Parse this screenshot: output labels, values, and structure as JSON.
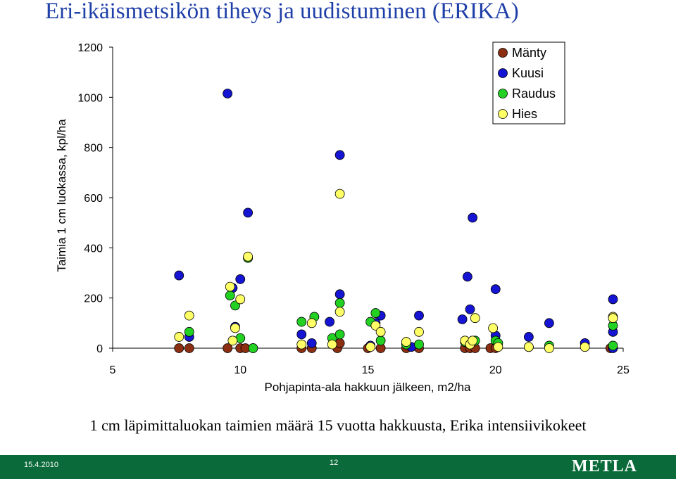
{
  "header": {
    "title": "Eri-ikäismetsikön tiheys ja uudistuminen (ERIKA)"
  },
  "caption": "1 cm läpimittaluokan taimien määrä 15 vuotta hakkuusta, Erika intensiivikokeet",
  "footer": {
    "date": "15.4.2010",
    "page": "12",
    "logo": "METLA"
  },
  "chart_data": {
    "type": "scatter",
    "title": "",
    "xlabel": "Pohjapinta-ala hakkuun jälkeen, m2/ha",
    "ylabel": "Taimia 1 cm luokassa, kpl/ha",
    "xlim": [
      5,
      25
    ],
    "ylim": [
      0,
      1200
    ],
    "xticks": [
      "5",
      "10",
      "15",
      "20",
      "25"
    ],
    "yticks": [
      "0",
      "200",
      "400",
      "600",
      "800",
      "1000",
      "1200"
    ],
    "grid": false,
    "legend_position": "top-right",
    "series": [
      {
        "name": "Mänty",
        "color": "#8b2e12",
        "points": [
          [
            7.6,
            0
          ],
          [
            8.0,
            0
          ],
          [
            9.5,
            0
          ],
          [
            10.0,
            0
          ],
          [
            10.2,
            0
          ],
          [
            10.5,
            0
          ],
          [
            12.4,
            0
          ],
          [
            12.8,
            0
          ],
          [
            13.8,
            0
          ],
          [
            13.9,
            20
          ],
          [
            15.0,
            0
          ],
          [
            15.5,
            0
          ],
          [
            16.5,
            0
          ],
          [
            17.0,
            0
          ],
          [
            18.8,
            0
          ],
          [
            19.0,
            0
          ],
          [
            19.2,
            0
          ],
          [
            19.8,
            0
          ],
          [
            20.0,
            0
          ],
          [
            24.5,
            0
          ]
        ]
      },
      {
        "name": "Kuusi",
        "color": "#1414d2",
        "points": [
          [
            7.6,
            290
          ],
          [
            8.0,
            45
          ],
          [
            9.5,
            1015
          ],
          [
            9.7,
            240
          ],
          [
            9.8,
            85
          ],
          [
            10.0,
            275
          ],
          [
            10.3,
            540
          ],
          [
            10.3,
            360
          ],
          [
            12.4,
            55
          ],
          [
            12.8,
            20
          ],
          [
            13.5,
            105
          ],
          [
            13.9,
            215
          ],
          [
            13.9,
            770
          ],
          [
            15.1,
            10
          ],
          [
            15.3,
            100
          ],
          [
            15.5,
            130
          ],
          [
            16.7,
            5
          ],
          [
            17.0,
            130
          ],
          [
            18.7,
            115
          ],
          [
            18.9,
            285
          ],
          [
            19.0,
            155
          ],
          [
            19.1,
            520
          ],
          [
            20.0,
            235
          ],
          [
            20.0,
            50
          ],
          [
            21.3,
            45
          ],
          [
            22.1,
            100
          ],
          [
            23.5,
            20
          ],
          [
            24.6,
            195
          ],
          [
            24.6,
            65
          ],
          [
            24.6,
            0
          ]
        ]
      },
      {
        "name": "Raudus",
        "color": "#22d122",
        "points": [
          [
            8.0,
            65
          ],
          [
            9.6,
            210
          ],
          [
            9.8,
            170
          ],
          [
            10.0,
            40
          ],
          [
            10.3,
            360
          ],
          [
            10.5,
            0
          ],
          [
            12.4,
            105
          ],
          [
            12.9,
            125
          ],
          [
            13.6,
            40
          ],
          [
            13.9,
            180
          ],
          [
            13.9,
            55
          ],
          [
            15.1,
            105
          ],
          [
            15.3,
            140
          ],
          [
            15.5,
            30
          ],
          [
            16.5,
            15
          ],
          [
            17.0,
            15
          ],
          [
            18.8,
            25
          ],
          [
            19.2,
            30
          ],
          [
            20.0,
            30
          ],
          [
            20.1,
            20
          ],
          [
            21.3,
            5
          ],
          [
            22.1,
            10
          ],
          [
            24.6,
            90
          ],
          [
            24.6,
            10
          ]
        ]
      },
      {
        "name": "Hies",
        "color": "#ffff66",
        "points": [
          [
            7.6,
            45
          ],
          [
            8.0,
            130
          ],
          [
            9.6,
            245
          ],
          [
            9.7,
            30
          ],
          [
            9.8,
            80
          ],
          [
            10.0,
            195
          ],
          [
            10.3,
            365
          ],
          [
            12.4,
            15
          ],
          [
            12.8,
            100
          ],
          [
            13.6,
            15
          ],
          [
            13.9,
            145
          ],
          [
            13.9,
            615
          ],
          [
            15.1,
            5
          ],
          [
            15.3,
            90
          ],
          [
            15.5,
            65
          ],
          [
            16.5,
            25
          ],
          [
            17.0,
            65
          ],
          [
            18.8,
            30
          ],
          [
            19.0,
            15
          ],
          [
            19.1,
            30
          ],
          [
            19.2,
            120
          ],
          [
            19.9,
            80
          ],
          [
            20.1,
            5
          ],
          [
            21.3,
            5
          ],
          [
            22.1,
            0
          ],
          [
            23.5,
            5
          ],
          [
            24.6,
            125
          ],
          [
            24.6,
            120
          ]
        ]
      }
    ]
  }
}
